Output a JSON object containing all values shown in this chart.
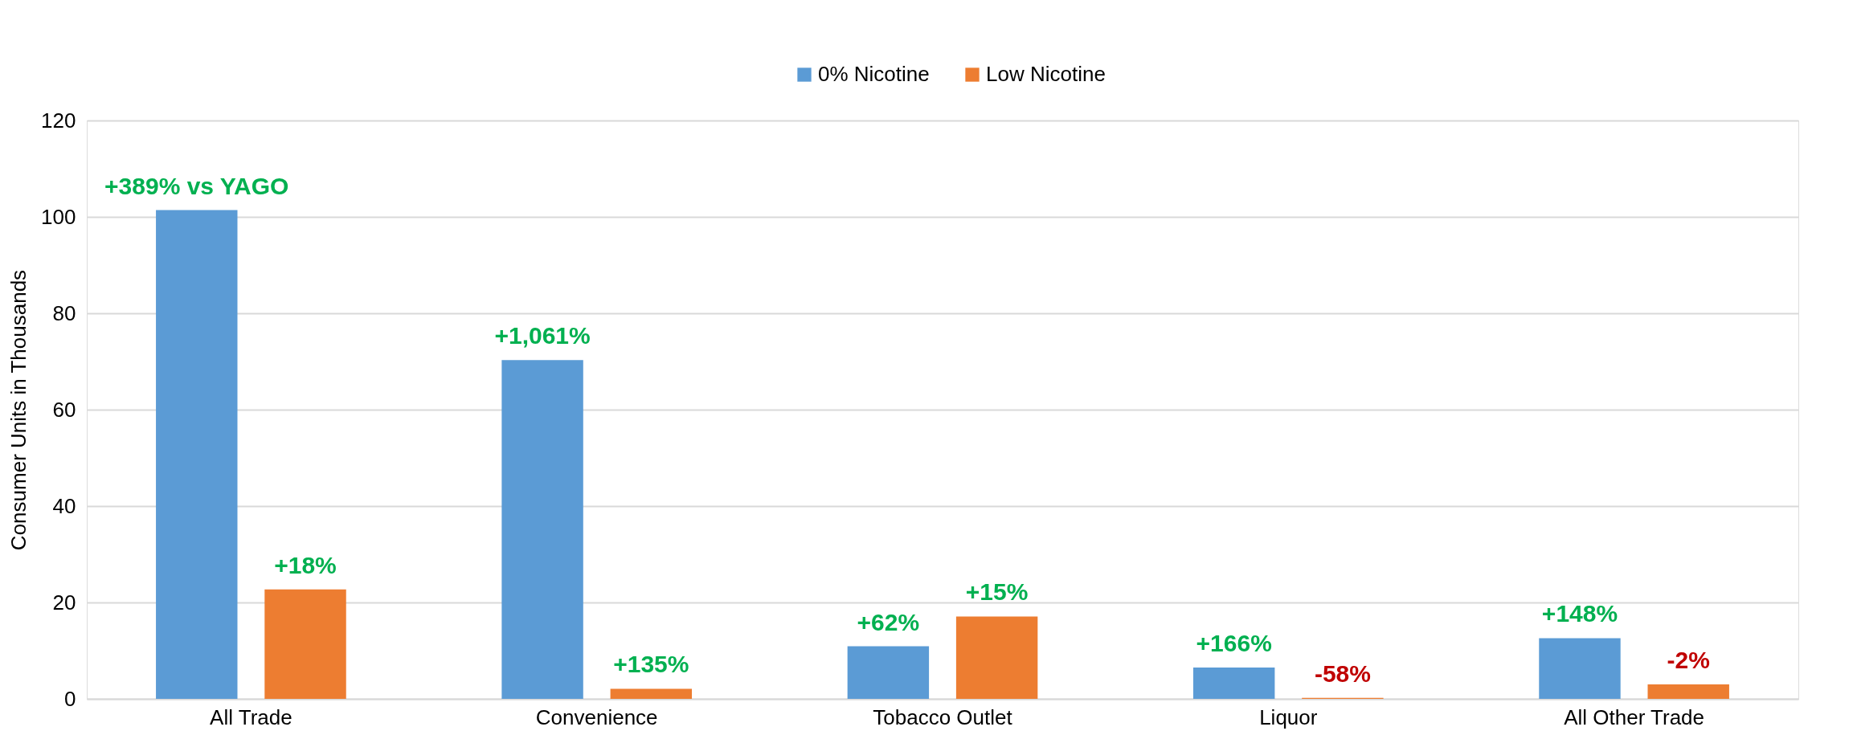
{
  "chart_data": {
    "type": "bar",
    "ylabel": "Consumer  Units in Thousands",
    "categories": [
      "All Trade",
      "Convenience",
      "Tobacco Outlet",
      "Liquor",
      "All Other Trade"
    ],
    "series": [
      {
        "name": "0% Nicotine",
        "color": "#5b9bd5",
        "values": [
          101.4,
          70.3,
          10.9,
          6.5,
          12.6
        ]
      },
      {
        "name": "Low Nicotine",
        "color": "#ed7d31",
        "values": [
          22.7,
          2.1,
          17.1,
          0.2,
          3.0
        ]
      }
    ],
    "annotations": [
      "+389% vs YAGO",
      "+18%",
      "+1,061%",
      "+135%",
      "+62%",
      "+15%",
      "+166%",
      "-58%",
      "+148%",
      "-2%"
    ],
    "ylim": [
      0,
      120
    ],
    "yticks": [
      0,
      20,
      40,
      60,
      80,
      100,
      120
    ],
    "grid": "y",
    "legend": "top"
  }
}
